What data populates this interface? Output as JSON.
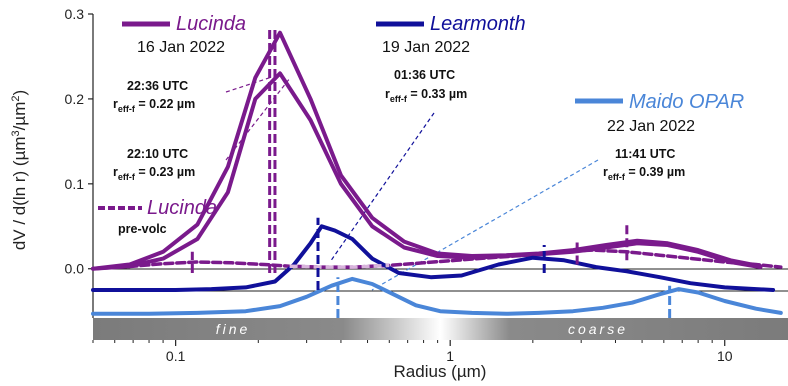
{
  "chart_data": {
    "type": "line",
    "xscale": "log",
    "xlim": [
      0.05,
      17
    ],
    "ylim": [
      -0.058,
      0.3
    ],
    "xlabel": "Radius (µm)",
    "ylabel_parts": [
      "dV / d(ln r) (µm",
      "3",
      "/µm",
      "2",
      ")"
    ],
    "xticks": [
      {
        "value": 0.1,
        "label": "0.1"
      },
      {
        "value": 1,
        "label": "1"
      },
      {
        "value": 10,
        "label": "10"
      }
    ],
    "yticks": [
      {
        "value": 0.0,
        "label": "0.0"
      },
      {
        "value": 0.1,
        "label": "0.1"
      },
      {
        "value": 0.2,
        "label": "0.2"
      },
      {
        "value": 0.3,
        "label": "0.3"
      }
    ],
    "colors": {
      "lucinda": "#7a1a8c",
      "learmonth": "#10109a",
      "maido": "#4a86d8",
      "pre_volc_light": "#d8b4dc"
    },
    "band": {
      "fine": "fine",
      "coarse": "coarse"
    },
    "series": [
      {
        "name": "Lucinda",
        "note": "22:36 UTC",
        "color": "#7a1a8c",
        "x": [
          0.05,
          0.068,
          0.09,
          0.12,
          0.155,
          0.195,
          0.24,
          0.31,
          0.4,
          0.52,
          0.68,
          0.9,
          1.2,
          1.6,
          2.1,
          2.8,
          3.7,
          4.8,
          6.2,
          8.0,
          10.5,
          13.5
        ],
        "y": [
          0.0,
          0.005,
          0.02,
          0.052,
          0.12,
          0.225,
          0.278,
          0.2,
          0.11,
          0.06,
          0.032,
          0.018,
          0.015,
          0.016,
          0.018,
          0.022,
          0.028,
          0.033,
          0.03,
          0.022,
          0.01,
          0.003
        ]
      },
      {
        "name": "Lucinda",
        "note": "22:10 UTC",
        "color": "#7a1a8c",
        "x": [
          0.05,
          0.068,
          0.09,
          0.12,
          0.155,
          0.195,
          0.24,
          0.31,
          0.4,
          0.52,
          0.68,
          0.9,
          1.2,
          1.6,
          2.1,
          2.8,
          3.7,
          4.8,
          6.2,
          8.0,
          10.5,
          13.5
        ],
        "y": [
          0.0,
          0.003,
          0.012,
          0.035,
          0.09,
          0.2,
          0.23,
          0.175,
          0.1,
          0.05,
          0.025,
          0.015,
          0.013,
          0.015,
          0.017,
          0.02,
          0.025,
          0.03,
          0.028,
          0.02,
          0.008,
          0.002
        ]
      },
      {
        "name": "Lucinda",
        "note": "pre-volc",
        "color": "#7a1a8c",
        "dashed": true,
        "x": [
          0.05,
          0.07,
          0.09,
          0.12,
          0.16,
          0.21,
          0.26,
          0.34,
          0.45,
          0.6,
          0.8,
          1.05,
          1.4,
          1.9,
          2.5,
          3.3,
          4.4,
          5.8,
          7.6,
          10.0,
          13.0,
          16.0
        ],
        "y": [
          0.0,
          0.003,
          0.006,
          0.008,
          0.007,
          0.005,
          0.003,
          0.002,
          0.002,
          0.004,
          0.007,
          0.01,
          0.013,
          0.016,
          0.02,
          0.022,
          0.02,
          0.016,
          0.012,
          0.008,
          0.005,
          0.002
        ]
      },
      {
        "name": "Learmonth",
        "note": "01:36 UTC",
        "color": "#10109a",
        "x": [
          0.05,
          0.07,
          0.1,
          0.135,
          0.18,
          0.23,
          0.27,
          0.31,
          0.34,
          0.38,
          0.44,
          0.52,
          0.65,
          0.85,
          1.1,
          1.5,
          2.0,
          2.6,
          3.4,
          4.4,
          5.8,
          7.5,
          10.0,
          15.0
        ],
        "y": [
          -0.025,
          -0.025,
          -0.025,
          -0.024,
          -0.022,
          -0.015,
          0.005,
          0.03,
          0.05,
          0.045,
          0.035,
          0.012,
          -0.005,
          -0.01,
          -0.008,
          0.005,
          0.013,
          0.01,
          0.002,
          -0.003,
          -0.01,
          -0.017,
          -0.022,
          -0.025
        ]
      },
      {
        "name": "Maido OPAR",
        "note": "11:41 UTC",
        "color": "#4a86d8",
        "x": [
          0.05,
          0.08,
          0.12,
          0.18,
          0.24,
          0.3,
          0.37,
          0.44,
          0.52,
          0.62,
          0.75,
          0.92,
          1.2,
          1.6,
          2.1,
          2.8,
          3.6,
          4.6,
          5.8,
          6.8,
          8.0,
          10.0,
          13.0,
          16.0
        ],
        "y": [
          -0.053,
          -0.053,
          -0.052,
          -0.05,
          -0.044,
          -0.033,
          -0.02,
          -0.012,
          -0.018,
          -0.03,
          -0.043,
          -0.05,
          -0.052,
          -0.053,
          -0.052,
          -0.05,
          -0.046,
          -0.04,
          -0.03,
          -0.024,
          -0.028,
          -0.038,
          -0.047,
          -0.052
        ]
      }
    ],
    "reff_markers": [
      {
        "series": "Lucinda 22:36",
        "x": 0.22,
        "color": "#7a1a8c",
        "y0": -0.005,
        "y1": 0.285
      },
      {
        "series": "Lucinda 22:10",
        "x": 0.23,
        "color": "#7a1a8c",
        "y0": -0.005,
        "y1": 0.285
      },
      {
        "series": "Learmonth",
        "x": 0.33,
        "color": "#10109a",
        "y0": -0.025,
        "y1": 0.06
      },
      {
        "series": "Maido OPAR",
        "x": 0.39,
        "color": "#4a86d8",
        "y0": -0.058,
        "y1": -0.01
      },
      {
        "series": "Lucinda coarse a",
        "x": 2.9,
        "color": "#7a1a8c",
        "y0": 0.005,
        "y1": 0.035
      },
      {
        "series": "Lucinda coarse b",
        "x": 4.4,
        "color": "#7a1a8c",
        "y0": 0.01,
        "y1": 0.055
      },
      {
        "series": "Learmonth coarse",
        "x": 2.2,
        "color": "#10109a",
        "y0": -0.005,
        "y1": 0.028
      },
      {
        "series": "Maido coarse",
        "x": 6.3,
        "color": "#4a86d8",
        "y0": -0.058,
        "y1": -0.02
      },
      {
        "series": "Lucinda pre-volc fine",
        "x": 0.115,
        "color": "#7a1a8c",
        "y0": -0.005,
        "y1": 0.02
      }
    ],
    "labels": {
      "lucinda_name": "Lucinda",
      "lucinda_date": "16 Jan 2022",
      "learmonth_name": "Learmonth",
      "learmonth_date": "19 Jan 2022",
      "maido_name": "Maido OPAR",
      "maido_date": "22 Jan 2022",
      "prevolc_name": "Lucinda",
      "prevolc_sub": "pre-volc"
    },
    "annotations": [
      {
        "time": "22:36 UTC",
        "reff_value": "0.22 µm"
      },
      {
        "time": "22:10 UTC",
        "reff_value": "0.23 µm"
      },
      {
        "time": "01:36 UTC",
        "reff_value": "0.33 µm"
      },
      {
        "time": "11:41 UTC",
        "reff_value": "0.39 µm"
      }
    ],
    "reff_prefix": "r",
    "reff_sub": "eff-f",
    "reff_eq": " = "
  }
}
